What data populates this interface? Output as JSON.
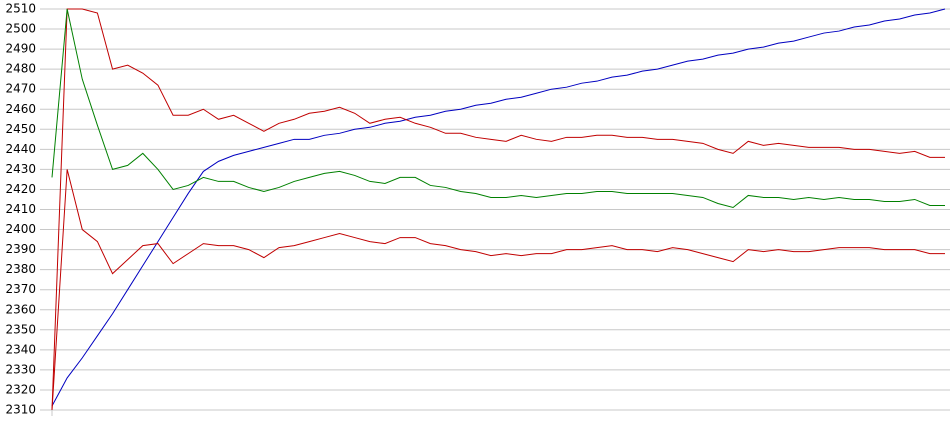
{
  "chart_data": {
    "type": "line",
    "categories": [
      null,
      null,
      null,
      null,
      null,
      null,
      null,
      null,
      null,
      null,
      null,
      null,
      null,
      null,
      null,
      null,
      null,
      null,
      null,
      null,
      null,
      null,
      null,
      null,
      null,
      null,
      null,
      null,
      null,
      null,
      null,
      null,
      null,
      null,
      null,
      null,
      null,
      null,
      null,
      null,
      null,
      null,
      null,
      null,
      null,
      null,
      null,
      null,
      null,
      null,
      null,
      null,
      null,
      null,
      null,
      null,
      null,
      null,
      null,
      null
    ],
    "series": [
      {
        "color": "#0000c0",
        "values": [
          2312,
          2326,
          2336,
          2347,
          2358,
          2370,
          2382,
          2394,
          2406,
          2418,
          2429,
          2434,
          2437,
          2439,
          2441,
          2443,
          2445,
          2445,
          2447,
          2448,
          2450,
          2451,
          2453,
          2454,
          2456,
          2457,
          2459,
          2460,
          2462,
          2463,
          2465,
          2466,
          2468,
          2470,
          2471,
          2473,
          2474,
          2476,
          2477,
          2479,
          2480,
          2482,
          2484,
          2485,
          2487,
          2488,
          2490,
          2491,
          2493,
          2494,
          2496,
          2498,
          2499,
          2501,
          2502,
          2504,
          2505,
          2507,
          2508,
          2510
        ]
      },
      {
        "color": "#c00000",
        "values": [
          2310,
          2510,
          2510,
          2508,
          2480,
          2482,
          2478,
          2472,
          2457,
          2457,
          2460,
          2455,
          2457,
          2453,
          2449,
          2453,
          2455,
          2458,
          2459,
          2461,
          2458,
          2453,
          2455,
          2456,
          2453,
          2451,
          2448,
          2448,
          2446,
          2445,
          2444,
          2447,
          2445,
          2444,
          2446,
          2446,
          2447,
          2447,
          2446,
          2446,
          2445,
          2445,
          2444,
          2443,
          2440,
          2438,
          2444,
          2442,
          2443,
          2442,
          2441,
          2441,
          2441,
          2440,
          2440,
          2439,
          2438,
          2439,
          2436,
          2436
        ]
      },
      {
        "color": "#008000",
        "values": [
          2426,
          2510,
          2475,
          2452,
          2430,
          2432,
          2438,
          2430,
          2420,
          2422,
          2426,
          2424,
          2424,
          2421,
          2419,
          2421,
          2424,
          2426,
          2428,
          2429,
          2427,
          2424,
          2423,
          2426,
          2426,
          2422,
          2421,
          2419,
          2418,
          2416,
          2416,
          2417,
          2416,
          2417,
          2418,
          2418,
          2419,
          2419,
          2418,
          2418,
          2418,
          2418,
          2417,
          2416,
          2413,
          2411,
          2417,
          2416,
          2416,
          2415,
          2416,
          2415,
          2416,
          2415,
          2415,
          2414,
          2414,
          2415,
          2412,
          2412
        ]
      },
      {
        "color": "#c00000",
        "values": [
          2310,
          2430,
          2400,
          2394,
          2378,
          2385,
          2392,
          2393,
          2383,
          2388,
          2393,
          2392,
          2392,
          2390,
          2386,
          2391,
          2392,
          2394,
          2396,
          2398,
          2396,
          2394,
          2393,
          2396,
          2396,
          2393,
          2392,
          2390,
          2389,
          2387,
          2388,
          2387,
          2388,
          2388,
          2390,
          2390,
          2391,
          2392,
          2390,
          2390,
          2389,
          2391,
          2390,
          2388,
          2386,
          2384,
          2390,
          2389,
          2390,
          2389,
          2389,
          2390,
          2391,
          2391,
          2391,
          2390,
          2390,
          2390,
          2388,
          2388
        ]
      }
    ],
    "ylim": [
      2310,
      2510
    ],
    "yticks": [
      2310,
      2320,
      2330,
      2340,
      2350,
      2360,
      2370,
      2380,
      2390,
      2400,
      2410,
      2420,
      2430,
      2440,
      2450,
      2460,
      2470,
      2480,
      2490,
      2500,
      2510
    ],
    "grid": true
  }
}
